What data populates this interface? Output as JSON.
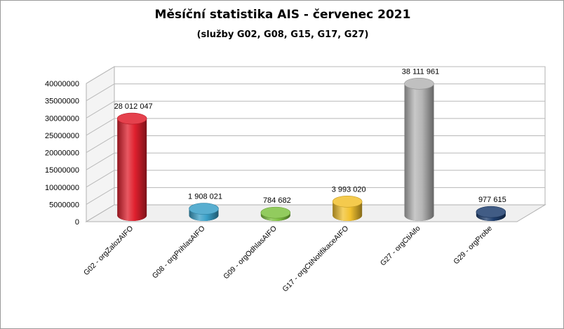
{
  "title": "Měsíční statistika AIS -  červenec 2021",
  "subtitle": "(služby G02,  G08, G15, G17, G27)",
  "chart_data": {
    "type": "bar",
    "style": "3d-cylinder",
    "title": "Měsíční statistika AIS -  červenec 2021",
    "subtitle": "(služby G02,  G08, G15, G17, G27)",
    "xlabel": "",
    "ylabel": "",
    "ylim": [
      0,
      40000000
    ],
    "yticks": [
      0,
      5000000,
      10000000,
      15000000,
      20000000,
      25000000,
      30000000,
      35000000,
      40000000
    ],
    "ytick_labels": [
      "0",
      "5000000",
      "10000000",
      "15000000",
      "20000000",
      "25000000",
      "30000000",
      "35000000",
      "40000000"
    ],
    "grid": true,
    "legend": "none",
    "categories": [
      "G02 - orgZalozAIFO",
      "G08 - orgPrihlasAIFO",
      "G09 - orgOdhlasAIFO",
      "G17 - orgCtiNotifikaceAIFO",
      "G27 - orgCtiAifo",
      "G29 - orgProbe"
    ],
    "values": [
      28012047,
      1908021,
      784682,
      3993020,
      38111961,
      977615
    ],
    "data_labels": [
      "28 012 047",
      "1 908 021",
      "784 682",
      "3 993 020",
      "38 111 961",
      "977 615"
    ],
    "colors": [
      "#e0202e",
      "#3aa0c8",
      "#7fc241",
      "#f2c12e",
      "#b5b5b5",
      "#1f3f6f"
    ]
  }
}
